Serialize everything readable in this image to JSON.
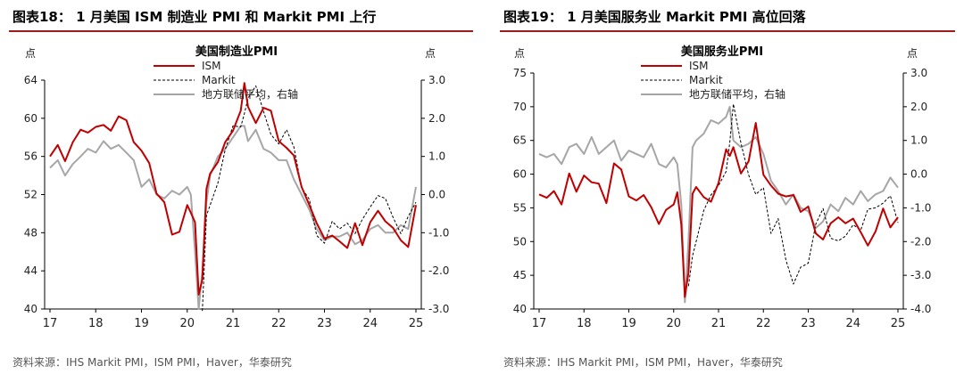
{
  "charts": [
    {
      "fig_title": "图表18：  1 月美国 ISM 制造业 PMI 和 Markit PMI 上行",
      "source": "资料来源：IHS Markit PMI，ISM PMI，Haver，华泰研究",
      "chart_data": {
        "type": "line",
        "title": "美国制造业PMI",
        "y_left_unit": "点",
        "y_right_unit": "点",
        "x_ticks": [
          "17",
          "18",
          "19",
          "20",
          "21",
          "22",
          "23",
          "24",
          "25"
        ],
        "x_range": [
          2017.0,
          2025.0
        ],
        "ylim_left": [
          40,
          64
        ],
        "y_left_ticks": [
          "40",
          "44",
          "48",
          "52",
          "56",
          "60",
          "64"
        ],
        "ylim_right": [
          -3.0,
          3.0
        ],
        "y_right_ticks": [
          "-3.0",
          "-2.0",
          "-1.0",
          "0.0",
          "1.0",
          "2.0",
          "3.0"
        ],
        "grid": false,
        "legend_position": "top-center",
        "series": [
          {
            "name": "ISM",
            "axis": "left",
            "color": "#c00000",
            "style": "solid",
            "x": [
              2017.0,
              2017.17,
              2017.33,
              2017.5,
              2017.67,
              2017.83,
              2018.0,
              2018.17,
              2018.33,
              2018.5,
              2018.67,
              2018.83,
              2019.0,
              2019.17,
              2019.33,
              2019.5,
              2019.67,
              2019.83,
              2020.0,
              2020.08,
              2020.17,
              2020.25,
              2020.33,
              2020.42,
              2020.5,
              2020.67,
              2020.83,
              2021.0,
              2021.17,
              2021.25,
              2021.33,
              2021.5,
              2021.67,
              2021.83,
              2022.0,
              2022.17,
              2022.33,
              2022.5,
              2022.67,
              2022.83,
              2023.0,
              2023.17,
              2023.33,
              2023.5,
              2023.67,
              2023.83,
              2024.0,
              2024.17,
              2024.33,
              2024.5,
              2024.67,
              2024.83,
              2025.0
            ],
            "y": [
              56.0,
              57.2,
              55.5,
              57.5,
              58.8,
              58.5,
              59.1,
              59.3,
              58.7,
              60.2,
              59.8,
              57.5,
              56.6,
              55.3,
              52.1,
              51.2,
              47.8,
              48.1,
              50.9,
              50.1,
              49.1,
              41.5,
              43.1,
              52.6,
              54.2,
              55.4,
              57.5,
              58.7,
              60.8,
              63.7,
              61.2,
              59.5,
              61.1,
              60.8,
              57.6,
              56.9,
              56.1,
              52.8,
              50.9,
              49.0,
              47.4,
              47.7,
              47.1,
              46.4,
              49.0,
              46.7,
              49.1,
              50.3,
              49.2,
              48.5,
              47.2,
              46.5,
              50.9
            ]
          },
          {
            "name": "Markit",
            "axis": "left",
            "color": "#000000",
            "style": "dashed",
            "x": [
              2020.33,
              2020.42,
              2020.5,
              2020.67,
              2020.83,
              2021.0,
              2021.17,
              2021.25,
              2021.33,
              2021.5,
              2021.67,
              2021.83,
              2022.0,
              2022.17,
              2022.33,
              2022.5,
              2022.67,
              2022.83,
              2023.0,
              2023.17,
              2023.33,
              2023.5,
              2023.67,
              2023.83,
              2024.0,
              2024.17,
              2024.33,
              2024.5,
              2024.67,
              2024.83,
              2025.0
            ],
            "y": [
              39.8,
              49.8,
              50.9,
              53.2,
              56.7,
              59.2,
              59.1,
              60.5,
              62.1,
              63.4,
              60.7,
              58.3,
              57.3,
              58.8,
              57.0,
              52.7,
              51.5,
              47.7,
              46.9,
              49.2,
              48.4,
              49.0,
              47.9,
              49.4,
              50.7,
              51.9,
              51.6,
              49.6,
              47.9,
              49.7,
              51.2
            ]
          },
          {
            "name": "地方联储平均，右轴",
            "axis": "right",
            "color": "#a6a6a6",
            "style": "solid",
            "x": [
              2017.0,
              2017.17,
              2017.33,
              2017.5,
              2017.67,
              2017.83,
              2018.0,
              2018.17,
              2018.33,
              2018.5,
              2018.67,
              2018.83,
              2019.0,
              2019.17,
              2019.33,
              2019.5,
              2019.67,
              2019.83,
              2020.0,
              2020.08,
              2020.17,
              2020.25,
              2020.33,
              2020.42,
              2020.5,
              2020.67,
              2020.83,
              2021.0,
              2021.17,
              2021.25,
              2021.33,
              2021.5,
              2021.67,
              2021.83,
              2022.0,
              2022.17,
              2022.33,
              2022.5,
              2022.67,
              2022.83,
              2023.0,
              2023.17,
              2023.33,
              2023.5,
              2023.67,
              2023.83,
              2024.0,
              2024.17,
              2024.33,
              2024.5,
              2024.67,
              2024.83,
              2025.0
            ],
            "y": [
              0.7,
              0.9,
              0.5,
              0.8,
              1.0,
              1.2,
              1.1,
              1.4,
              1.2,
              1.3,
              1.1,
              0.9,
              0.2,
              0.4,
              0.0,
              -0.1,
              0.1,
              0.0,
              0.2,
              0.0,
              -1.5,
              -3.0,
              -2.0,
              -0.2,
              0.5,
              1.0,
              1.2,
              1.5,
              1.8,
              1.8,
              1.4,
              1.7,
              1.2,
              1.1,
              0.9,
              0.9,
              0.4,
              0.0,
              -0.4,
              -0.9,
              -1.2,
              -1.1,
              -1.1,
              -1.0,
              -1.3,
              -1.2,
              -0.9,
              -0.8,
              -1.0,
              -1.0,
              -0.8,
              -0.9,
              0.2
            ]
          }
        ]
      }
    },
    {
      "fig_title": "图表19：  1 月美国服务业 Markit PMI 高位回落",
      "source": "资料来源：IHS Markit PMI，ISM PMI，Haver，华泰研究",
      "chart_data": {
        "type": "line",
        "title": "美国服务业PMI",
        "y_left_unit": "点",
        "y_right_unit": "点",
        "x_ticks": [
          "17",
          "18",
          "19",
          "20",
          "21",
          "22",
          "23",
          "24",
          "25"
        ],
        "x_range": [
          2017.0,
          2025.0
        ],
        "ylim_left": [
          40,
          75
        ],
        "y_left_ticks": [
          "40",
          "45",
          "50",
          "55",
          "60",
          "65",
          "70",
          "75"
        ],
        "ylim_right": [
          -4.0,
          3.0
        ],
        "y_right_ticks": [
          "-4.0",
          "-3.0",
          "-2.0",
          "-1.0",
          "0.0",
          "1.0",
          "2.0",
          "3.0"
        ],
        "grid": false,
        "legend_position": "top-center",
        "series": [
          {
            "name": "ISM",
            "axis": "left",
            "color": "#c00000",
            "style": "solid",
            "x": [
              2017.0,
              2017.17,
              2017.33,
              2017.5,
              2017.67,
              2017.83,
              2018.0,
              2018.17,
              2018.33,
              2018.5,
              2018.67,
              2018.83,
              2019.0,
              2019.17,
              2019.33,
              2019.5,
              2019.67,
              2019.83,
              2020.0,
              2020.08,
              2020.17,
              2020.25,
              2020.33,
              2020.42,
              2020.5,
              2020.67,
              2020.83,
              2021.0,
              2021.17,
              2021.25,
              2021.33,
              2021.5,
              2021.67,
              2021.83,
              2022.0,
              2022.17,
              2022.33,
              2022.5,
              2022.67,
              2022.83,
              2023.0,
              2023.17,
              2023.33,
              2023.5,
              2023.67,
              2023.83,
              2024.0,
              2024.17,
              2024.33,
              2024.5,
              2024.67,
              2024.83,
              2025.0
            ],
            "y": [
              57.0,
              56.5,
              57.5,
              55.5,
              60.1,
              57.4,
              59.8,
              58.8,
              58.6,
              55.7,
              61.6,
              60.7,
              56.7,
              56.1,
              56.9,
              55.1,
              52.6,
              54.7,
              55.5,
              57.3,
              52.5,
              41.8,
              45.4,
              57.1,
              58.1,
              56.6,
              55.9,
              58.7,
              63.7,
              62.7,
              64.0,
              60.1,
              61.9,
              67.6,
              59.9,
              58.3,
              57.1,
              56.7,
              56.9,
              54.4,
              55.2,
              51.2,
              50.3,
              52.7,
              53.6,
              52.7,
              53.4,
              51.4,
              49.4,
              51.5,
              54.9,
              52.1,
              53.6
            ]
          },
          {
            "name": "Markit",
            "axis": "left",
            "color": "#000000",
            "style": "dashed",
            "x": [
              2020.33,
              2020.42,
              2020.5,
              2020.67,
              2020.83,
              2021.0,
              2021.17,
              2021.25,
              2021.33,
              2021.5,
              2021.67,
              2021.83,
              2022.0,
              2022.17,
              2022.33,
              2022.5,
              2022.67,
              2022.83,
              2023.0,
              2023.17,
              2023.33,
              2023.5,
              2023.67,
              2023.83,
              2024.0,
              2024.17,
              2024.33,
              2024.5,
              2024.67,
              2024.83,
              2025.0
            ],
            "y": [
              43.4,
              47.9,
              50.0,
              54.6,
              56.9,
              58.3,
              60.4,
              64.7,
              70.4,
              64.6,
              59.9,
              57.0,
              58.0,
              51.2,
              53.4,
              47.3,
              43.7,
              46.2,
              46.8,
              52.6,
              54.9,
              50.5,
              50.1,
              50.8,
              52.5,
              51.7,
              54.8,
              55.0,
              55.7,
              56.8,
              52.8
            ]
          },
          {
            "name": "地方联储平均，右轴",
            "axis": "right",
            "color": "#a6a6a6",
            "style": "solid",
            "x": [
              2017.0,
              2017.17,
              2017.33,
              2017.5,
              2017.67,
              2017.83,
              2018.0,
              2018.17,
              2018.33,
              2018.5,
              2018.67,
              2018.83,
              2019.0,
              2019.17,
              2019.33,
              2019.5,
              2019.67,
              2019.83,
              2020.0,
              2020.08,
              2020.17,
              2020.25,
              2020.33,
              2020.42,
              2020.5,
              2020.67,
              2020.83,
              2021.0,
              2021.17,
              2021.25,
              2021.33,
              2021.5,
              2021.67,
              2021.83,
              2022.0,
              2022.17,
              2022.33,
              2022.5,
              2022.67,
              2022.83,
              2023.0,
              2023.17,
              2023.33,
              2023.5,
              2023.67,
              2023.83,
              2024.0,
              2024.17,
              2024.33,
              2024.5,
              2024.67,
              2024.83,
              2025.0
            ],
            "y": [
              0.6,
              0.5,
              0.6,
              0.3,
              0.8,
              0.9,
              0.6,
              1.1,
              0.6,
              0.8,
              1.0,
              0.4,
              0.7,
              0.6,
              0.5,
              0.9,
              0.3,
              0.2,
              0.5,
              0.3,
              -0.9,
              -3.8,
              -2.0,
              0.8,
              1.0,
              1.2,
              1.6,
              1.5,
              1.7,
              2.0,
              1.0,
              0.8,
              0.9,
              1.1,
              0.6,
              -0.2,
              -0.5,
              -0.9,
              -0.6,
              -1.0,
              -1.1,
              -1.6,
              -1.4,
              -0.9,
              -1.1,
              -0.7,
              -0.9,
              -0.5,
              -0.8,
              -0.6,
              -0.5,
              -0.1,
              -0.4
            ]
          }
        ]
      }
    }
  ]
}
